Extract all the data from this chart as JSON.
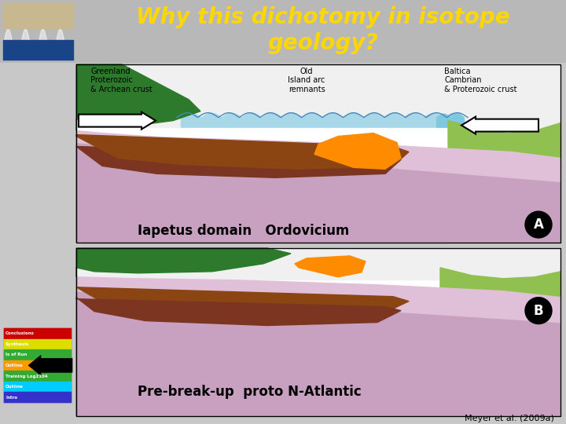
{
  "title": "Why this dichotomy in isotope\ngeology?",
  "title_color": "#FFD700",
  "title_bg": "#8B0000",
  "title_fontsize": 20,
  "panel_A_labels": {
    "greenland": "Greenland\nProterozoic\n& Archean crust",
    "old_island": "Old\nIsland arc\nremnants",
    "baltica": "Baltica\nCambrian\n& Proterozoic crust"
  },
  "panel_A_text": "Iapetus domain   Ordovicium",
  "panel_B_text": "Pre-break-up  proto N-Atlantic",
  "citation": "Meyer et al. (2009a)",
  "nav_labels": [
    "Conclusions",
    "Synthesis",
    "Is of Run",
    "Outline",
    "Training Log2104",
    "Outline",
    "Intro"
  ],
  "nav_colors": [
    "#cc0000",
    "#dddd00",
    "#33aa33",
    "#ff9900",
    "#33aa33",
    "#00ccff",
    "#3333cc"
  ],
  "sidebar_color": "#b8b8b8",
  "panel_bg": "#ffffff",
  "panel_outer_bg": "#c8c8c8",
  "colors": {
    "dark_green": "#2d7a2d",
    "light_green": "#8fc050",
    "light_blue": "#a8d8e8",
    "cyan_blue": "#80c8e0",
    "orange": "#FF8C00",
    "dark_brown": "#7B3520",
    "brown": "#8B4513",
    "pink_dark": "#c8a0c0",
    "pink_light": "#e0c0d8",
    "white": "#ffffff"
  }
}
